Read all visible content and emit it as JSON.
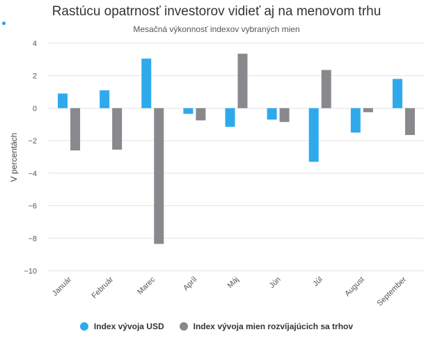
{
  "chart_data": {
    "type": "bar",
    "title": "Rastúcu opatrnosť investorov vidieť aj na menovom trhu",
    "subtitle": "Mesačná výkonnosť indexov vybraných mien",
    "ylabel": "V percentách",
    "ylim": [
      -10,
      4
    ],
    "yticks": [
      "4",
      "2",
      "0",
      "−2",
      "−4",
      "−6",
      "−8",
      "−10"
    ],
    "ytick_values": [
      4,
      2,
      0,
      -2,
      -4,
      -6,
      -8,
      -10
    ],
    "grid": true,
    "legend_position": "bottom",
    "categories": [
      "Január",
      "Február",
      "Marec",
      "Apríl",
      "Máj",
      "Jún",
      "Júl",
      "August",
      "September"
    ],
    "series": [
      {
        "name": "Index vývoja USD",
        "color": "#2eaaec",
        "values": [
          0.9,
          1.1,
          3.05,
          -0.35,
          -1.15,
          -0.7,
          -3.3,
          -1.5,
          1.8
        ]
      },
      {
        "name": "Index vývoja mien rozvíjajúcich sa trhov",
        "color": "#88898c",
        "values": [
          -2.6,
          -2.55,
          -8.35,
          -0.75,
          3.35,
          -0.85,
          2.35,
          -0.25,
          -1.65
        ]
      }
    ]
  }
}
